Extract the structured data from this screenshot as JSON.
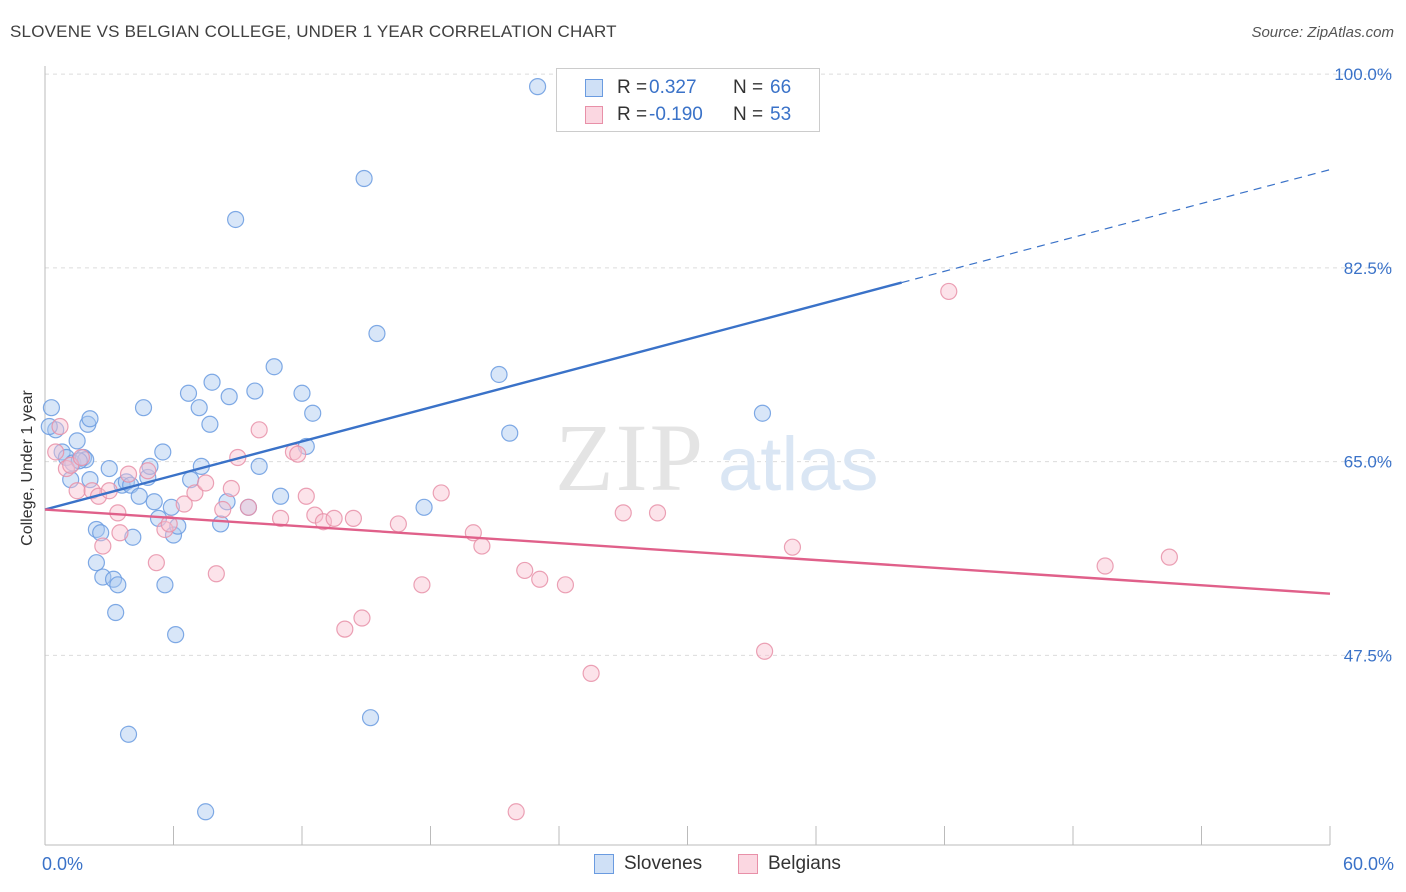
{
  "title": "SLOVENE VS BELGIAN COLLEGE, UNDER 1 YEAR CORRELATION CHART",
  "source": "Source: ZipAtlas.com",
  "watermark": {
    "zip": "ZIP",
    "atlas": "atlas"
  },
  "legend": {
    "r_label": "R =",
    "n_label": "N =",
    "rows": [
      {
        "r": "0.327",
        "n": "66",
        "color": "#a8c8f0",
        "border": "#6a9be0"
      },
      {
        "r": "-0.190",
        "n": "53",
        "color": "#f8c0d0",
        "border": "#e890a8"
      }
    ]
  },
  "bottom_legend": [
    {
      "label": "Slovenes",
      "color": "#a8c8f0",
      "border": "#6a9be0"
    },
    {
      "label": "Belgians",
      "color": "#f8c0d0",
      "border": "#e890a8"
    }
  ],
  "chart_data": {
    "type": "scatter",
    "title": "SLOVENE VS BELGIAN COLLEGE, UNDER 1 YEAR CORRELATION CHART",
    "xlabel": "",
    "ylabel": "College, Under 1 year",
    "xlim": [
      0,
      60
    ],
    "ylim": [
      32,
      102
    ],
    "x_tick_labels": [
      "0.0%",
      "60.0%"
    ],
    "y_ticks": [
      47.5,
      65.0,
      82.5,
      100.0
    ],
    "y_tick_labels": [
      "47.5%",
      "65.0%",
      "82.5%",
      "100.0%"
    ],
    "grid": true,
    "legend_position": "top-center",
    "series": [
      {
        "name": "Slovenes",
        "color": "#6a9be0",
        "fill": "#a8c8f0",
        "trend": {
          "x": [
            0,
            40
          ],
          "y": [
            62.3,
            82.8
          ],
          "dashed_to": [
            60,
            93.0
          ],
          "color": "#3a72c8"
        },
        "points": [
          [
            0.3,
            71.5
          ],
          [
            0.5,
            69.5
          ],
          [
            0.8,
            67.5
          ],
          [
            1.0,
            67.0
          ],
          [
            1.2,
            65.0
          ],
          [
            1.3,
            66.5
          ],
          [
            1.5,
            68.5
          ],
          [
            1.8,
            67.0
          ],
          [
            1.9,
            66.8
          ],
          [
            2.0,
            70.0
          ],
          [
            2.1,
            65.0
          ],
          [
            2.1,
            70.5
          ],
          [
            2.4,
            60.5
          ],
          [
            2.4,
            57.5
          ],
          [
            2.6,
            60.2
          ],
          [
            2.7,
            56.2
          ],
          [
            3.0,
            66.0
          ],
          [
            3.2,
            56.0
          ],
          [
            3.3,
            53.0
          ],
          [
            3.4,
            55.5
          ],
          [
            3.6,
            64.5
          ],
          [
            3.8,
            64.8
          ],
          [
            3.9,
            42.0
          ],
          [
            4.0,
            64.5
          ],
          [
            4.1,
            59.8
          ],
          [
            4.4,
            63.5
          ],
          [
            4.6,
            71.5
          ],
          [
            4.8,
            65.2
          ],
          [
            4.9,
            66.2
          ],
          [
            5.1,
            63.0
          ],
          [
            5.3,
            61.5
          ],
          [
            5.5,
            67.5
          ],
          [
            5.6,
            55.5
          ],
          [
            5.9,
            62.5
          ],
          [
            6.0,
            60.0
          ],
          [
            6.1,
            51.0
          ],
          [
            6.2,
            60.8
          ],
          [
            6.7,
            72.8
          ],
          [
            6.8,
            65.0
          ],
          [
            7.2,
            71.5
          ],
          [
            7.3,
            66.2
          ],
          [
            7.5,
            35.0
          ],
          [
            7.7,
            70.0
          ],
          [
            7.8,
            73.8
          ],
          [
            8.2,
            61.0
          ],
          [
            8.5,
            63.0
          ],
          [
            8.6,
            72.5
          ],
          [
            8.9,
            88.5
          ],
          [
            9.5,
            62.5
          ],
          [
            9.8,
            73.0
          ],
          [
            10.0,
            66.2
          ],
          [
            10.7,
            75.2
          ],
          [
            11.0,
            63.5
          ],
          [
            12.0,
            72.8
          ],
          [
            12.2,
            68.0
          ],
          [
            12.5,
            71.0
          ],
          [
            14.9,
            92.2
          ],
          [
            15.2,
            43.5
          ],
          [
            15.5,
            78.2
          ],
          [
            17.7,
            62.5
          ],
          [
            21.2,
            74.5
          ],
          [
            21.7,
            69.2
          ],
          [
            23.0,
            100.5
          ],
          [
            33.5,
            71.0
          ],
          [
            0.2,
            69.8
          ],
          [
            1.6,
            66.7
          ]
        ]
      },
      {
        "name": "Belgians",
        "color": "#e890a8",
        "fill": "#f8c0d0",
        "trend": {
          "x": [
            0,
            60
          ],
          "y": [
            62.3,
            54.7
          ],
          "color": "#e0608a"
        },
        "points": [
          [
            0.5,
            67.5
          ],
          [
            0.7,
            69.8
          ],
          [
            1.0,
            66.0
          ],
          [
            1.2,
            66.3
          ],
          [
            1.5,
            64.0
          ],
          [
            1.7,
            67.0
          ],
          [
            2.2,
            64.0
          ],
          [
            2.5,
            63.5
          ],
          [
            2.7,
            59.0
          ],
          [
            3.0,
            64.0
          ],
          [
            3.4,
            62.0
          ],
          [
            3.5,
            60.2
          ],
          [
            3.9,
            65.5
          ],
          [
            4.8,
            65.8
          ],
          [
            5.2,
            57.5
          ],
          [
            5.6,
            60.5
          ],
          [
            5.8,
            61.0
          ],
          [
            6.5,
            62.8
          ],
          [
            7.0,
            63.8
          ],
          [
            7.5,
            64.7
          ],
          [
            8.0,
            56.5
          ],
          [
            8.3,
            62.3
          ],
          [
            8.7,
            64.2
          ],
          [
            9.0,
            67.0
          ],
          [
            9.5,
            62.5
          ],
          [
            10.0,
            69.5
          ],
          [
            11.0,
            61.5
          ],
          [
            11.6,
            67.5
          ],
          [
            11.8,
            67.3
          ],
          [
            12.2,
            63.5
          ],
          [
            12.6,
            61.8
          ],
          [
            13.0,
            61.2
          ],
          [
            13.5,
            61.5
          ],
          [
            14.0,
            51.5
          ],
          [
            14.4,
            61.5
          ],
          [
            14.8,
            52.5
          ],
          [
            16.5,
            61.0
          ],
          [
            17.6,
            55.5
          ],
          [
            18.5,
            63.8
          ],
          [
            20.0,
            60.2
          ],
          [
            20.4,
            59.0
          ],
          [
            22.4,
            56.8
          ],
          [
            23.1,
            56.0
          ],
          [
            24.3,
            55.5
          ],
          [
            25.5,
            47.5
          ],
          [
            27.0,
            62.0
          ],
          [
            28.6,
            62.0
          ],
          [
            33.6,
            49.5
          ],
          [
            34.9,
            58.9
          ],
          [
            42.2,
            82.0
          ],
          [
            49.5,
            57.2
          ],
          [
            52.5,
            58.0
          ],
          [
            22.0,
            35.0
          ]
        ]
      }
    ]
  }
}
